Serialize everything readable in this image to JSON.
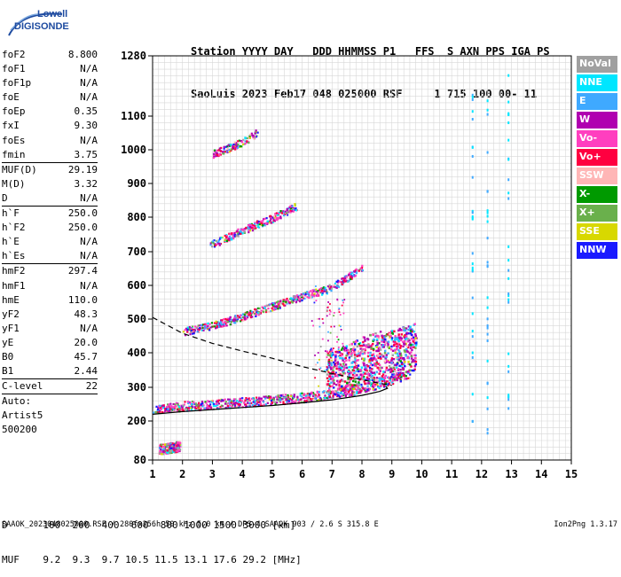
{
  "logo": {
    "line1": "Lowell",
    "line2": "DIGISONDE"
  },
  "header": {
    "line1": "Station YYYY DAY   DDD HHMMSS P1   FFS  S AXN PPS IGA PS",
    "line2": "SaoLuis 2023 Feb17 048 025000 RSF     1 715 100 00- 11"
  },
  "params": [
    {
      "k": "foF2",
      "v": "8.800"
    },
    {
      "k": "foF1",
      "v": "N/A"
    },
    {
      "k": "foF1p",
      "v": "N/A"
    },
    {
      "k": "foE",
      "v": "N/A"
    },
    {
      "k": "foEp",
      "v": "0.35"
    },
    {
      "k": "fxI",
      "v": "9.30"
    },
    {
      "k": "foEs",
      "v": "N/A"
    },
    {
      "k": "fmin",
      "v": "3.75",
      "sep": true
    },
    {
      "k": "MUF(D)",
      "v": "29.19"
    },
    {
      "k": "M(D)",
      "v": "3.32"
    },
    {
      "k": "D",
      "v": "N/A",
      "sep": true
    },
    {
      "k": "h`F",
      "v": "250.0"
    },
    {
      "k": "h`F2",
      "v": "250.0"
    },
    {
      "k": "h`E",
      "v": "N/A"
    },
    {
      "k": "h`Es",
      "v": "N/A",
      "sep": true
    },
    {
      "k": "hmF2",
      "v": "297.4"
    },
    {
      "k": "hmF1",
      "v": "N/A"
    },
    {
      "k": "hmE",
      "v": "110.0"
    },
    {
      "k": "yF2",
      "v": "48.3"
    },
    {
      "k": "yF1",
      "v": "N/A"
    },
    {
      "k": "yE",
      "v": "20.0"
    },
    {
      "k": "B0",
      "v": "45.7"
    },
    {
      "k": "B1",
      "v": "2.44",
      "sep": true
    },
    {
      "k": "C-level",
      "v": "22",
      "sep": true
    },
    {
      "k": "Auto:",
      "v": ""
    },
    {
      "k": "Artist5",
      "v": ""
    },
    {
      "k": "500200",
      "v": ""
    }
  ],
  "legend": [
    {
      "label": "NoVal",
      "color": "#a0a0a0"
    },
    {
      "label": "NNE",
      "color": "#00e6ff"
    },
    {
      "label": "E",
      "color": "#3fa9ff"
    },
    {
      "label": "W",
      "color": "#b000b0"
    },
    {
      "label": "Vo-",
      "color": "#ff3fbf"
    },
    {
      "label": "Vo+",
      "color": "#ff0040"
    },
    {
      "label": "SSW",
      "color": "#ffb6b6"
    },
    {
      "label": "X-",
      "color": "#009a00"
    },
    {
      "label": "X+",
      "color": "#6ab04c"
    },
    {
      "label": "SSE",
      "color": "#d8d800"
    },
    {
      "label": "NNW",
      "color": "#1a1aff"
    }
  ],
  "footer": {
    "d_row": "D      100  200  400  600  800 1000 1500 3000 [km]",
    "muf_row": "MUF    9.2  9.3  9.7 10.5 11.5 13.1 17.6 29.2 [MHz]",
    "info": "SAAOK_2023048025000.RSF / 280fx256h 50 kHz 5.0 km / DPS-4 SAAOK 903 / 2.6 S 315.8 E",
    "version": "Ion2Png 1.3.17"
  },
  "chart_data": {
    "type": "scatter",
    "title": "",
    "xlabel": "",
    "ylabel": "",
    "xlim": [
      1,
      15
    ],
    "ylim": [
      80,
      1280
    ],
    "x_ticks": [
      1,
      2,
      3,
      4,
      5,
      6,
      7,
      8,
      9,
      10,
      11,
      12,
      13,
      14,
      15
    ],
    "y_ticks": [
      80,
      200,
      300,
      400,
      500,
      600,
      700,
      800,
      900,
      1000,
      1100,
      1280
    ],
    "grid": true,
    "legend_position": "right",
    "traces": [
      {
        "name": "F2 O-trace",
        "style": "band",
        "points": [
          [
            1.0,
            228
          ],
          [
            2.0,
            240
          ],
          [
            3.0,
            245
          ],
          [
            4.0,
            252
          ],
          [
            5.0,
            258
          ],
          [
            6.0,
            266
          ],
          [
            7.0,
            276
          ],
          [
            8.0,
            292
          ],
          [
            8.8,
            315
          ],
          [
            9.6,
            335
          ]
        ]
      },
      {
        "name": "F2 second hop",
        "style": "band",
        "points": [
          [
            2.0,
            460
          ],
          [
            3.0,
            478
          ],
          [
            4.0,
            505
          ],
          [
            5.0,
            535
          ],
          [
            6.0,
            565
          ],
          [
            6.8,
            585
          ],
          [
            7.5,
            620
          ],
          [
            8.0,
            650
          ]
        ]
      },
      {
        "name": "F2 third hop",
        "style": "band",
        "points": [
          [
            2.9,
            715
          ],
          [
            3.5,
            740
          ],
          [
            4.3,
            770
          ],
          [
            5.0,
            795
          ],
          [
            5.8,
            830
          ]
        ]
      },
      {
        "name": "F2 fourth hop",
        "style": "band",
        "points": [
          [
            3.0,
            985
          ],
          [
            3.6,
            1005
          ],
          [
            4.2,
            1030
          ],
          [
            4.5,
            1050
          ]
        ]
      },
      {
        "name": "spread F",
        "style": "cloud",
        "points": [
          [
            6.8,
            340
          ],
          [
            7.5,
            355
          ],
          [
            8.0,
            380
          ],
          [
            8.5,
            395
          ],
          [
            9.0,
            400
          ],
          [
            9.4,
            410
          ],
          [
            9.8,
            420
          ]
        ]
      },
      {
        "name": "E-region echoes",
        "style": "cloud",
        "points": [
          [
            1.2,
            115
          ],
          [
            1.6,
            120
          ],
          [
            1.9,
            125
          ]
        ]
      },
      {
        "name": "NNE/E spikes",
        "style": "column",
        "points": [
          [
            11.7,
            900
          ],
          [
            12.2,
            700
          ],
          [
            12.9,
            1140
          ]
        ]
      }
    ],
    "profile_solid": [
      [
        1.0,
        220
      ],
      [
        2.0,
        228
      ],
      [
        3.0,
        234
      ],
      [
        4.0,
        240
      ],
      [
        5.0,
        246
      ],
      [
        6.0,
        254
      ],
      [
        7.0,
        263
      ],
      [
        8.0,
        276
      ],
      [
        8.6,
        288
      ],
      [
        8.85,
        297
      ],
      [
        8.8,
        302
      ]
    ],
    "profile_dashed": [
      [
        1.0,
        505
      ],
      [
        2.0,
        458
      ],
      [
        3.0,
        428
      ],
      [
        4.0,
        405
      ],
      [
        5.0,
        384
      ],
      [
        6.0,
        360
      ],
      [
        7.0,
        340
      ],
      [
        8.0,
        322
      ],
      [
        8.5,
        313
      ],
      [
        9.0,
        306
      ]
    ]
  }
}
